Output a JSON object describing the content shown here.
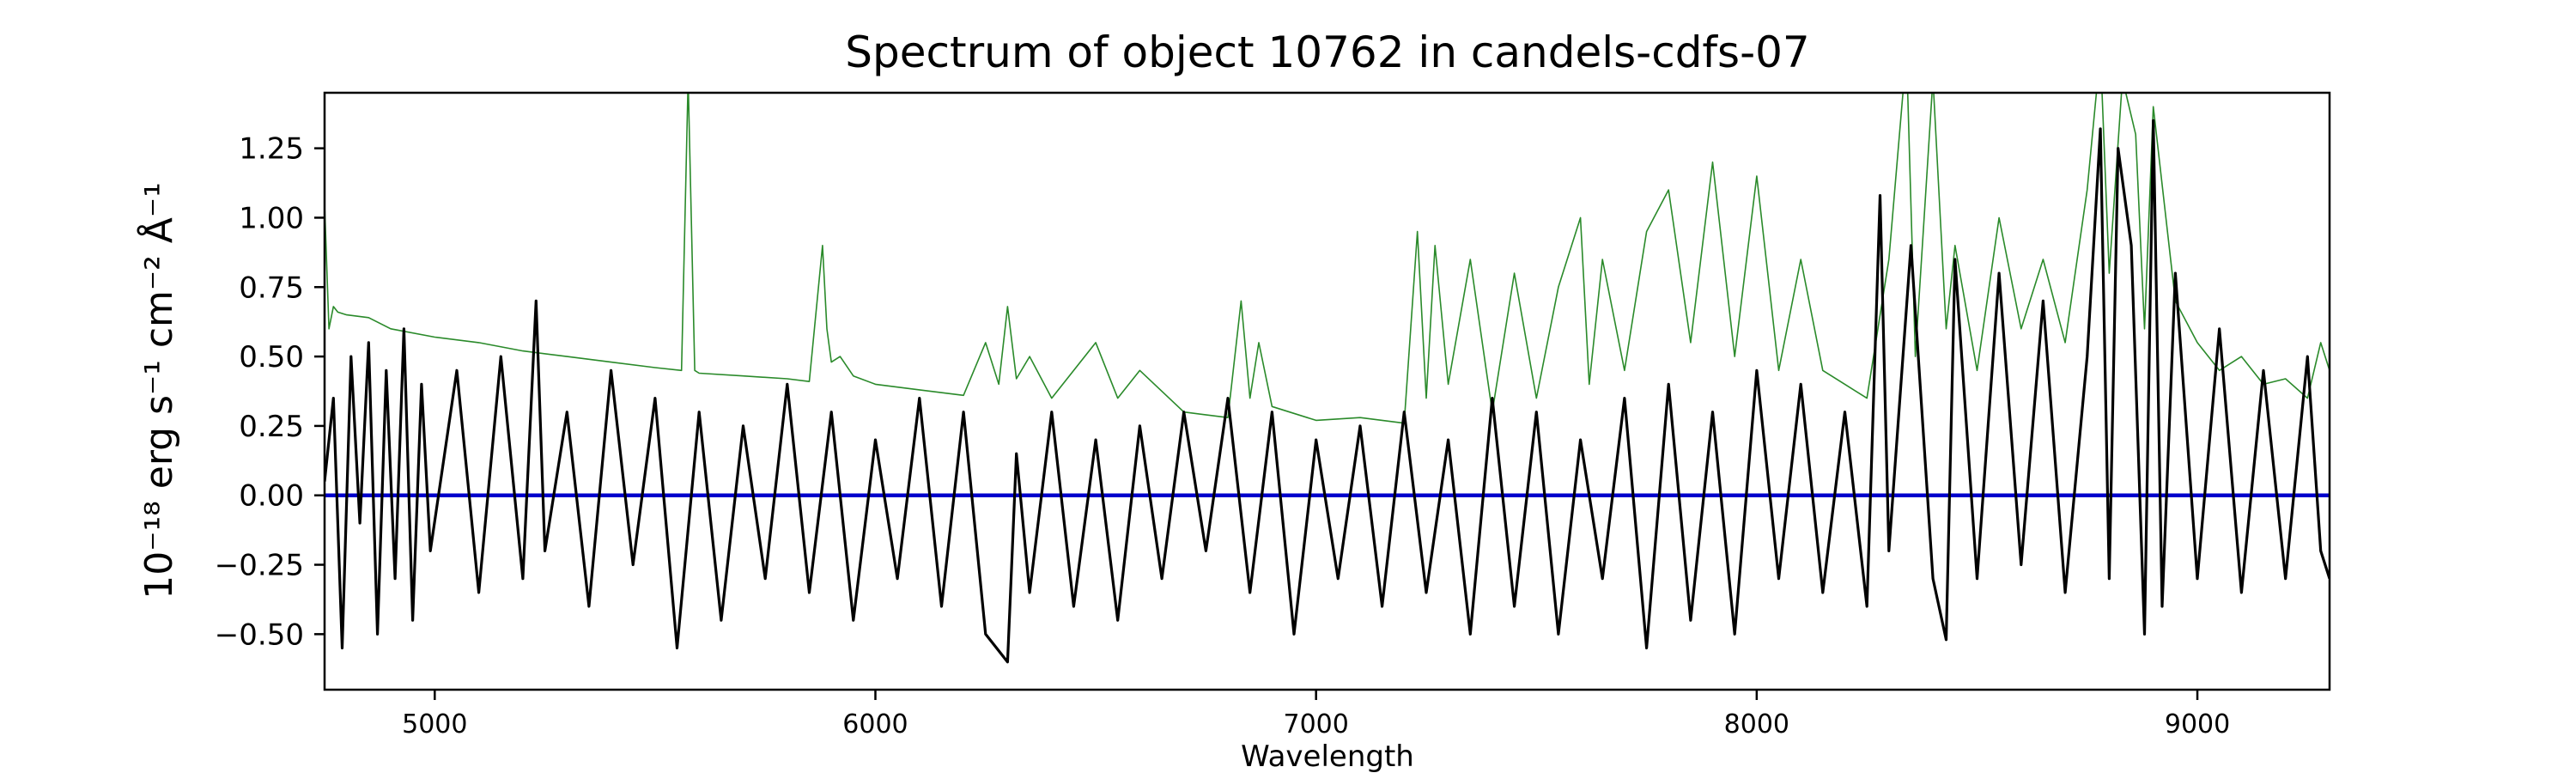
{
  "chart_data": {
    "type": "line",
    "title": "Spectrum of object 10762 in candels-cdfs-07",
    "xlabel": "Wavelength",
    "ylabel": "10⁻¹⁸ erg s⁻¹ cm⁻² Å⁻¹",
    "xlim": [
      4750,
      9300
    ],
    "ylim": [
      -0.7,
      1.45
    ],
    "x_ticks": [
      5000,
      6000,
      7000,
      8000,
      9000
    ],
    "y_ticks": [
      -0.5,
      -0.25,
      0.0,
      0.25,
      0.5,
      0.75,
      1.0,
      1.25
    ],
    "x_tick_labels": [
      "5000",
      "6000",
      "7000",
      "8000",
      "9000"
    ],
    "y_tick_labels": [
      "−0.50",
      "−0.25",
      "0.00",
      "0.25",
      "0.50",
      "0.75",
      "1.00",
      "1.25"
    ],
    "grid": false,
    "series": [
      {
        "color": "#000000",
        "x": [
          4750,
          4770,
          4790,
          4810,
          4830,
          4850,
          4870,
          4890,
          4910,
          4930,
          4950,
          4970,
          4990,
          5050,
          5100,
          5150,
          5200,
          5230,
          5250,
          5300,
          5350,
          5400,
          5450,
          5500,
          5550,
          5600,
          5650,
          5700,
          5750,
          5800,
          5850,
          5900,
          5950,
          6000,
          6050,
          6100,
          6150,
          6200,
          6250,
          6300,
          6320,
          6350,
          6400,
          6450,
          6500,
          6550,
          6600,
          6650,
          6700,
          6750,
          6800,
          6850,
          6900,
          6950,
          7000,
          7050,
          7100,
          7150,
          7200,
          7250,
          7300,
          7350,
          7400,
          7450,
          7500,
          7550,
          7600,
          7650,
          7700,
          7750,
          7800,
          7850,
          7900,
          7950,
          8000,
          8050,
          8100,
          8150,
          8200,
          8250,
          8280,
          8300,
          8350,
          8400,
          8430,
          8450,
          8500,
          8550,
          8600,
          8650,
          8700,
          8750,
          8780,
          8800,
          8820,
          8850,
          8880,
          8900,
          8920,
          8950,
          9000,
          9050,
          9100,
          9150,
          9200,
          9250,
          9280,
          9300
        ],
        "y": [
          0.05,
          0.35,
          -0.55,
          0.5,
          -0.1,
          0.55,
          -0.5,
          0.45,
          -0.3,
          0.6,
          -0.45,
          0.4,
          -0.2,
          0.45,
          -0.35,
          0.5,
          -0.3,
          0.7,
          -0.2,
          0.3,
          -0.4,
          0.45,
          -0.25,
          0.35,
          -0.55,
          0.3,
          -0.45,
          0.25,
          -0.3,
          0.4,
          -0.35,
          0.3,
          -0.45,
          0.2,
          -0.3,
          0.35,
          -0.4,
          0.3,
          -0.5,
          -0.6,
          0.15,
          -0.35,
          0.3,
          -0.4,
          0.2,
          -0.45,
          0.25,
          -0.3,
          0.3,
          -0.2,
          0.35,
          -0.35,
          0.3,
          -0.5,
          0.2,
          -0.3,
          0.25,
          -0.4,
          0.3,
          -0.35,
          0.2,
          -0.5,
          0.35,
          -0.4,
          0.3,
          -0.5,
          0.2,
          -0.3,
          0.35,
          -0.55,
          0.4,
          -0.45,
          0.3,
          -0.5,
          0.45,
          -0.3,
          0.4,
          -0.35,
          0.3,
          -0.4,
          1.08,
          -0.2,
          0.9,
          -0.3,
          -0.52,
          0.85,
          -0.3,
          0.8,
          -0.25,
          0.7,
          -0.35,
          0.5,
          1.32,
          -0.3,
          1.25,
          0.9,
          -0.5,
          1.35,
          -0.4,
          0.8,
          -0.3,
          0.6,
          -0.35,
          0.45,
          -0.3,
          0.5,
          -0.2,
          -0.3
        ]
      },
      {
        "color": "#2a8a2a",
        "x": [
          4750,
          4760,
          4770,
          4780,
          4800,
          4850,
          4900,
          5000,
          5100,
          5200,
          5300,
          5400,
          5500,
          5560,
          5575,
          5590,
          5600,
          5700,
          5800,
          5850,
          5880,
          5890,
          5900,
          5920,
          5950,
          6000,
          6100,
          6200,
          6250,
          6280,
          6300,
          6320,
          6350,
          6400,
          6500,
          6550,
          6600,
          6700,
          6800,
          6830,
          6850,
          6870,
          6900,
          7000,
          7100,
          7200,
          7230,
          7250,
          7270,
          7300,
          7350,
          7400,
          7450,
          7500,
          7550,
          7600,
          7620,
          7650,
          7700,
          7750,
          7800,
          7850,
          7900,
          7950,
          8000,
          8050,
          8100,
          8150,
          8200,
          8250,
          8300,
          8340,
          8360,
          8400,
          8430,
          8450,
          8500,
          8550,
          8600,
          8650,
          8700,
          8750,
          8780,
          8800,
          8830,
          8860,
          8880,
          8900,
          8950,
          9000,
          9050,
          9100,
          9150,
          9200,
          9250,
          9280,
          9300
        ],
        "y": [
          1.05,
          0.6,
          0.68,
          0.66,
          0.65,
          0.64,
          0.6,
          0.57,
          0.55,
          0.52,
          0.5,
          0.48,
          0.46,
          0.45,
          1.5,
          0.45,
          0.44,
          0.43,
          0.42,
          0.41,
          0.9,
          0.6,
          0.48,
          0.5,
          0.43,
          0.4,
          0.38,
          0.36,
          0.55,
          0.4,
          0.68,
          0.42,
          0.5,
          0.35,
          0.55,
          0.35,
          0.45,
          0.3,
          0.28,
          0.7,
          0.35,
          0.55,
          0.32,
          0.27,
          0.28,
          0.26,
          0.95,
          0.35,
          0.9,
          0.4,
          0.85,
          0.3,
          0.8,
          0.35,
          0.75,
          1.0,
          0.4,
          0.85,
          0.45,
          0.95,
          1.1,
          0.55,
          1.2,
          0.5,
          1.15,
          0.45,
          0.85,
          0.45,
          0.4,
          0.35,
          0.85,
          1.6,
          0.5,
          1.5,
          0.6,
          0.9,
          0.45,
          1.0,
          0.6,
          0.85,
          0.55,
          1.1,
          1.6,
          0.8,
          1.5,
          1.3,
          0.6,
          1.4,
          0.7,
          0.55,
          0.45,
          0.5,
          0.4,
          0.42,
          0.35,
          0.55,
          0.45
        ]
      },
      {
        "color": "#0000cc",
        "x": [
          4750,
          9300
        ],
        "y": [
          0.0,
          0.0
        ]
      }
    ]
  }
}
